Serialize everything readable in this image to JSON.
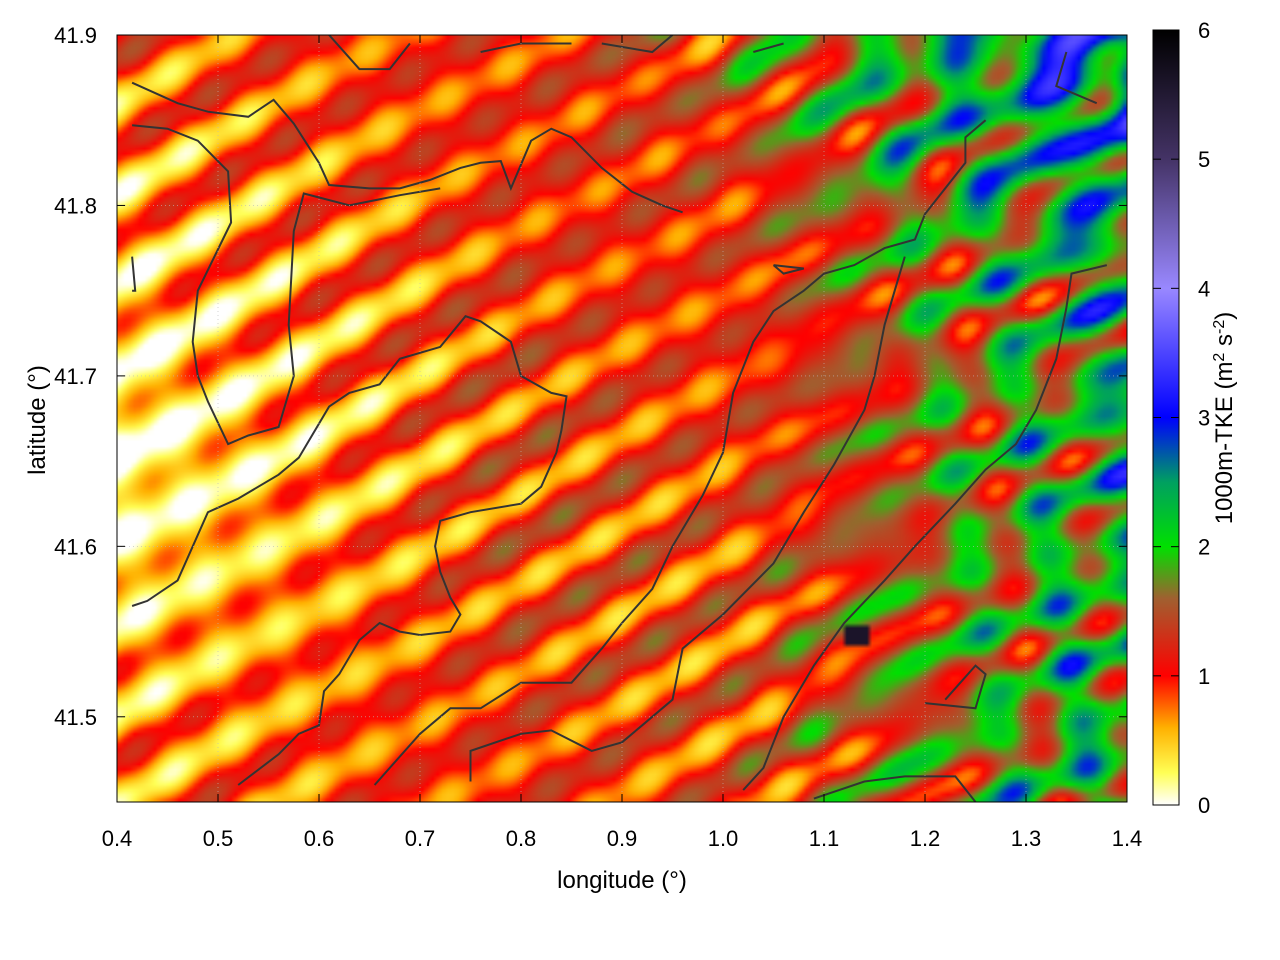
{
  "chart_data": {
    "type": "heatmap",
    "title": "",
    "xlabel": "longitude (°)",
    "ylabel": "latitude (°)",
    "xlim": [
      0.4,
      1.4
    ],
    "ylim": [
      41.45,
      41.9
    ],
    "xticks": [
      "0.4",
      "0.5",
      "0.6",
      "0.7",
      "0.8",
      "0.9",
      "1.0",
      "1.1",
      "1.2",
      "1.3",
      "1.4"
    ],
    "yticks": [
      "41.5",
      "41.6",
      "41.7",
      "41.8",
      "41.9"
    ],
    "grid": true,
    "colorbar": {
      "label_main": "1000m-TKE (m",
      "label_sup1": "2",
      "label_mid": " s",
      "label_sup2": "-2",
      "label_end": ")",
      "range": [
        0,
        6
      ],
      "ticks": [
        "0",
        "1",
        "2",
        "3",
        "4",
        "5",
        "6"
      ],
      "colors": [
        {
          "v": 0.0,
          "c": "#ffffff"
        },
        {
          "v": 0.25,
          "c": "#ffff55"
        },
        {
          "v": 0.6,
          "c": "#ffb000"
        },
        {
          "v": 1.0,
          "c": "#ff0000"
        },
        {
          "v": 1.6,
          "c": "#a06030"
        },
        {
          "v": 2.0,
          "c": "#00e000"
        },
        {
          "v": 2.5,
          "c": "#00a060"
        },
        {
          "v": 3.0,
          "c": "#0000ff"
        },
        {
          "v": 4.0,
          "c": "#9988ff"
        },
        {
          "v": 5.0,
          "c": "#443366"
        },
        {
          "v": 6.0,
          "c": "#000000"
        }
      ]
    },
    "field_description_colors": {
      "contour": "#333333"
    }
  }
}
